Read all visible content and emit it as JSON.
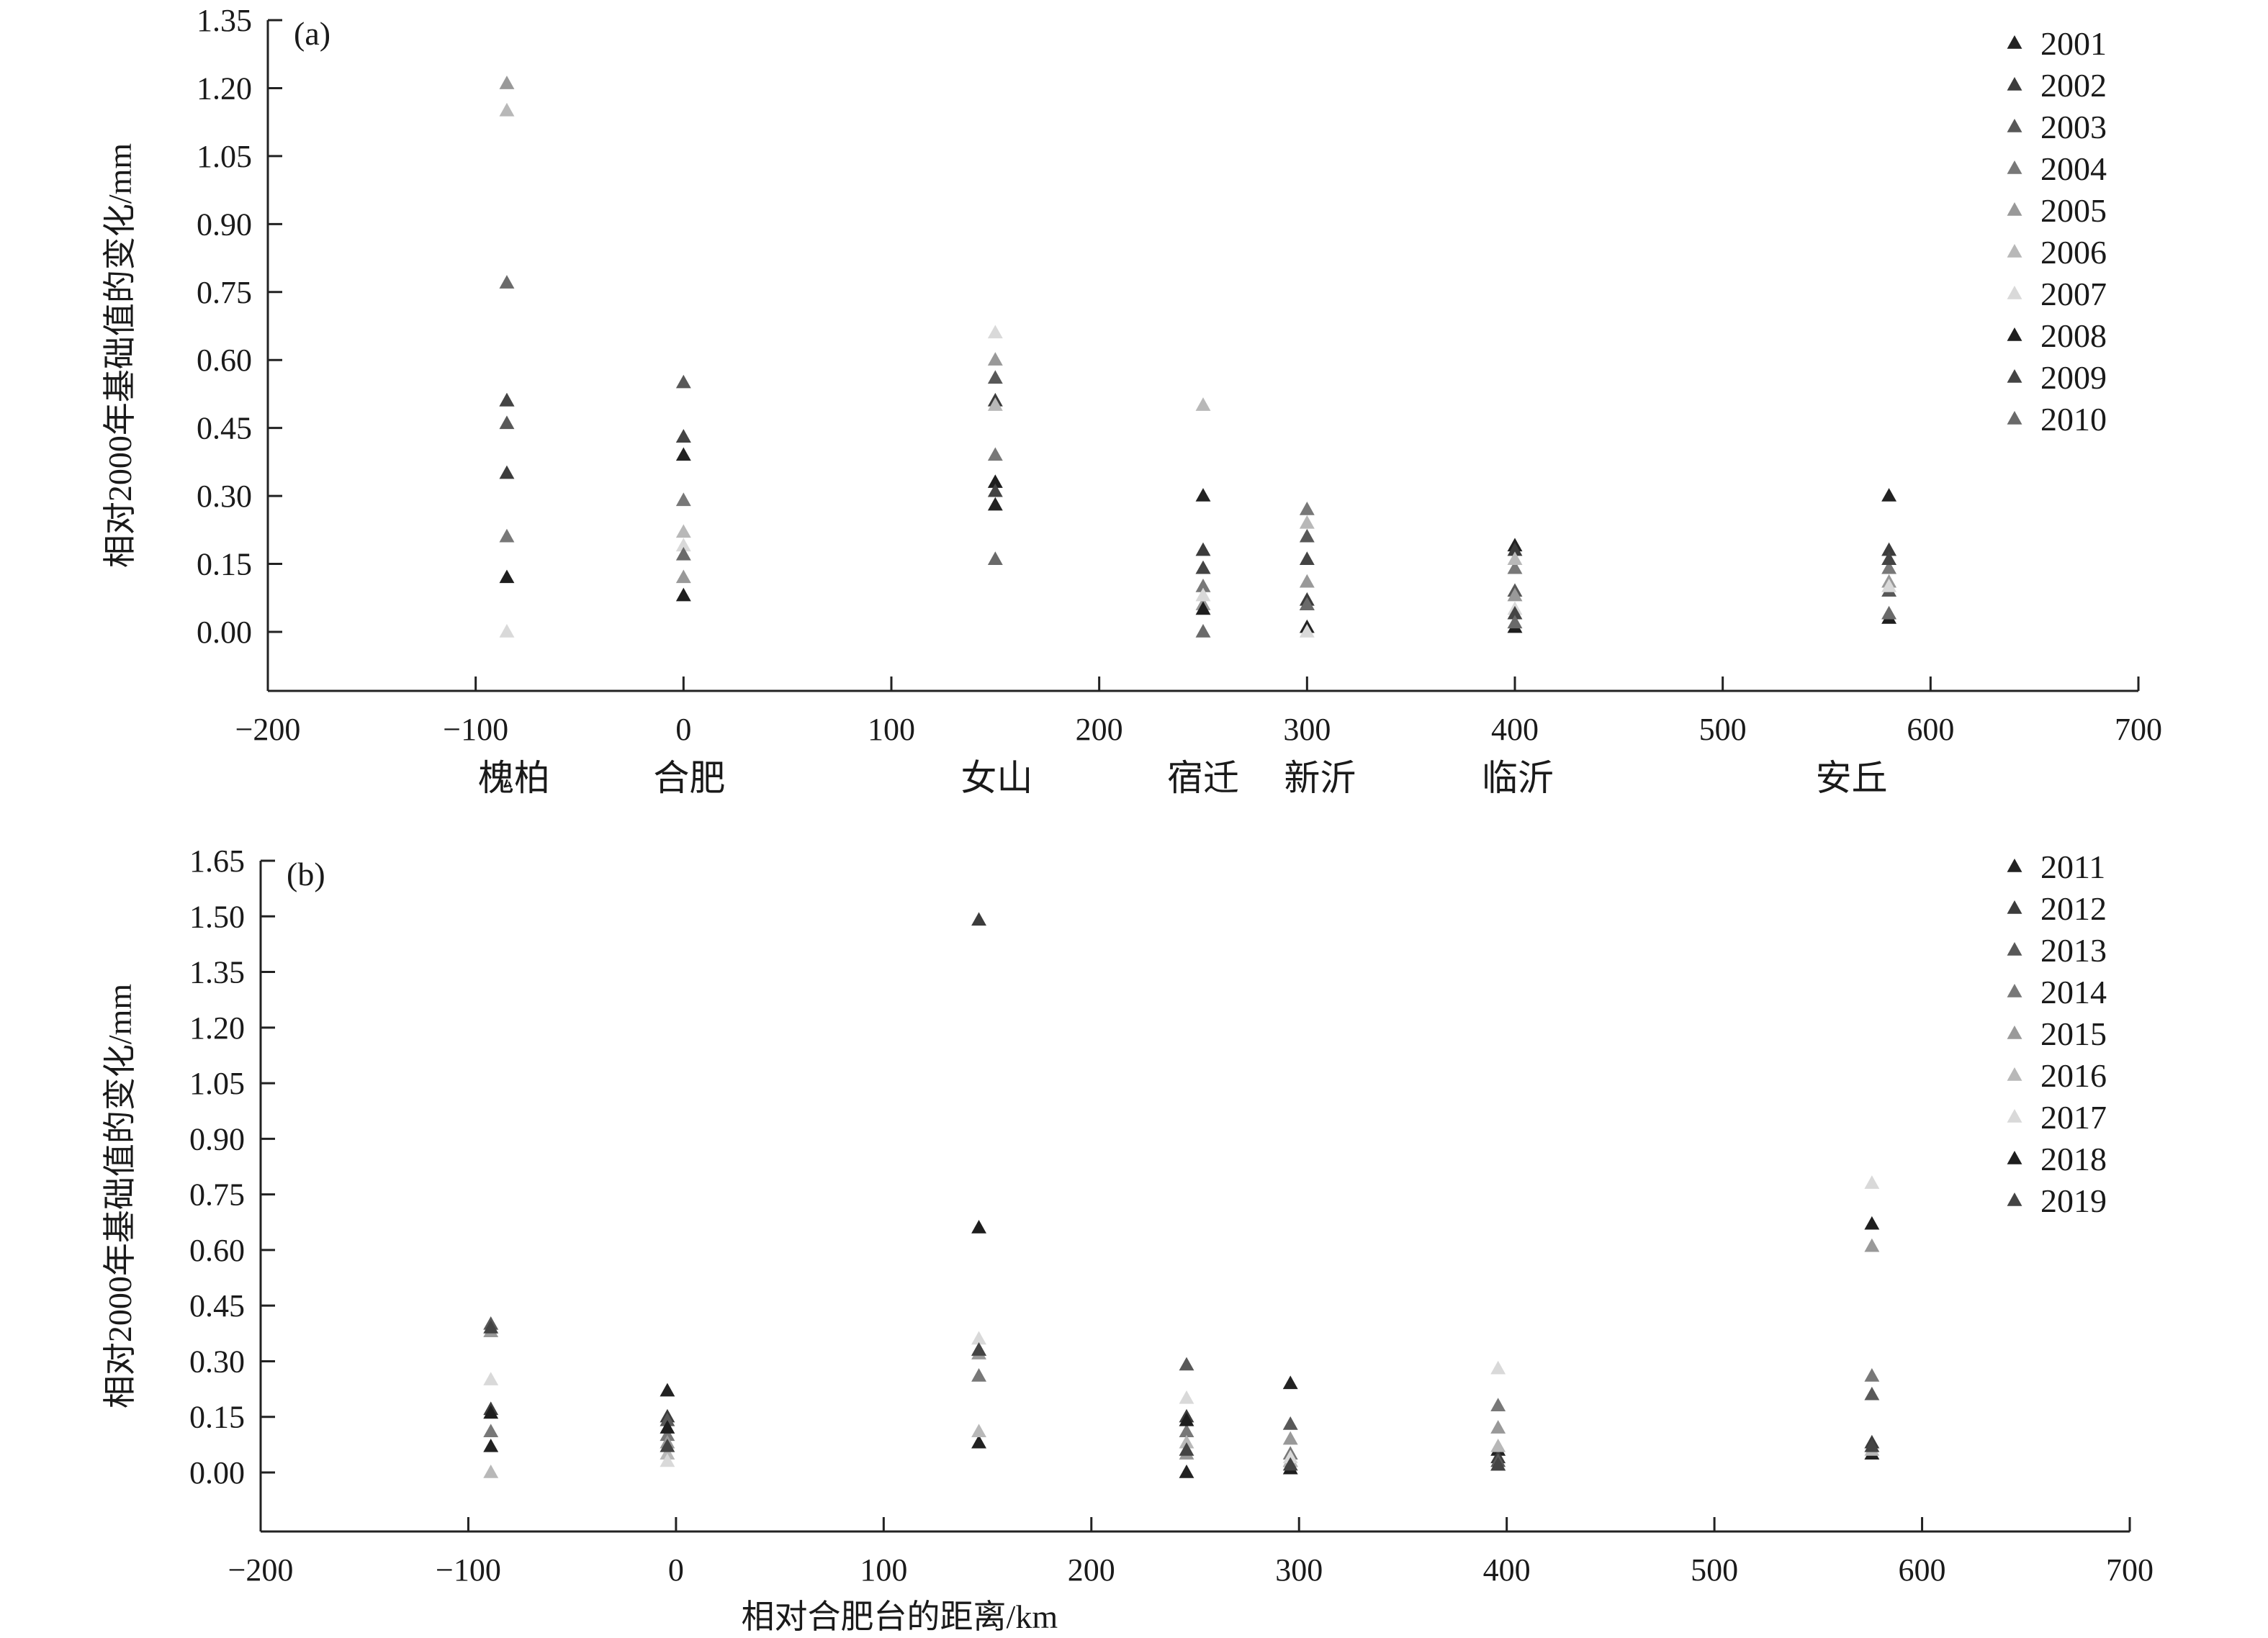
{
  "chart_data": [
    {
      "type": "scatter",
      "panel_label": "(a)",
      "ylabel": "相对2000年基础值的变化/mm",
      "xlabel": "",
      "xlim": [
        -200,
        700
      ],
      "ylim": [
        0,
        1.35
      ],
      "x_ticks": [
        -200,
        -100,
        0,
        100,
        200,
        300,
        400,
        500,
        600,
        700
      ],
      "x_tick_labels": [
        "−200",
        "−100",
        "0",
        "100",
        "200",
        "300",
        "400",
        "500",
        "600",
        "700"
      ],
      "y_ticks": [
        0,
        0.15,
        0.3,
        0.45,
        0.6,
        0.75,
        0.9,
        1.05,
        1.2,
        1.35
      ],
      "y_tick_labels": [
        "0.00",
        "0.15",
        "0.30",
        "0.45",
        "0.60",
        "0.75",
        "0.90",
        "1.05",
        "1.20",
        "1.35"
      ],
      "stations": [
        {
          "name": "槐柏",
          "x": -85
        },
        {
          "name": "合肥",
          "x": 0
        },
        {
          "name": "女山",
          "x": 150
        },
        {
          "name": "宿迁",
          "x": 250
        },
        {
          "name": "新沂",
          "x": 300
        },
        {
          "name": "临沂",
          "x": 400
        },
        {
          "name": "安丘",
          "x": 580
        }
      ],
      "legend_position": "top-right",
      "grid": false,
      "series": [
        {
          "name": "2001",
          "color": "#222222",
          "points": [
            [
              -85,
              0.51
            ],
            [
              0,
              0.39
            ],
            [
              150,
              0.28
            ],
            [
              250,
              0.3
            ],
            [
              300,
              0.01
            ],
            [
              400,
              0.19
            ],
            [
              580,
              0.3
            ]
          ]
        },
        {
          "name": "2002",
          "color": "#3c3c3c",
          "points": [
            [
              -85,
              0.35
            ],
            [
              0,
              0.43
            ],
            [
              150,
              0.51
            ],
            [
              250,
              0.18
            ],
            [
              300,
              0.07
            ],
            [
              400,
              0.18
            ],
            [
              580,
              0.18
            ]
          ]
        },
        {
          "name": "2003",
          "color": "#585858",
          "points": [
            [
              -85,
              0.46
            ],
            [
              0,
              0.55
            ],
            [
              150,
              0.56
            ],
            [
              250,
              0.14
            ],
            [
              300,
              0.21
            ],
            [
              400,
              0.09
            ],
            [
              580,
              0.09
            ]
          ]
        },
        {
          "name": "2004",
          "color": "#787878",
          "points": [
            [
              -85,
              0.21
            ],
            [
              0,
              0.29
            ],
            [
              150,
              0.39
            ],
            [
              250,
              0.1
            ],
            [
              300,
              0.27
            ],
            [
              400,
              0.14
            ],
            [
              580,
              0.14
            ]
          ]
        },
        {
          "name": "2005",
          "color": "#999999",
          "points": [
            [
              -85,
              1.21
            ],
            [
              0,
              0.12
            ],
            [
              150,
              0.6
            ],
            [
              250,
              0.06
            ],
            [
              300,
              0.11
            ],
            [
              400,
              0.08
            ],
            [
              580,
              0.11
            ]
          ]
        },
        {
          "name": "2006",
          "color": "#b8b8b8",
          "points": [
            [
              -85,
              1.15
            ],
            [
              0,
              0.22
            ],
            [
              150,
              0.5
            ],
            [
              250,
              0.5
            ],
            [
              300,
              0.24
            ],
            [
              400,
              0.16
            ],
            [
              580,
              0.04
            ]
          ]
        },
        {
          "name": "2007",
          "color": "#d9d9d9",
          "points": [
            [
              -85,
              0.0
            ],
            [
              0,
              0.19
            ],
            [
              150,
              0.66
            ],
            [
              250,
              0.08
            ],
            [
              300,
              0.0
            ],
            [
              400,
              0.05
            ],
            [
              580,
              0.1
            ]
          ]
        },
        {
          "name": "2008",
          "color": "#1e1e1e",
          "points": [
            [
              -85,
              0.12
            ],
            [
              0,
              0.08
            ],
            [
              150,
              0.33
            ],
            [
              250,
              0.05
            ],
            [
              300,
              0.06
            ],
            [
              400,
              0.01
            ],
            [
              580,
              0.03
            ]
          ]
        },
        {
          "name": "2009",
          "color": "#444444",
          "points": [
            [
              -85,
              0.51
            ],
            [
              0,
              0.43
            ],
            [
              150,
              0.31
            ],
            [
              250,
              0.14
            ],
            [
              300,
              0.16
            ],
            [
              400,
              0.04
            ],
            [
              580,
              0.16
            ]
          ]
        },
        {
          "name": "2010",
          "color": "#6a6a6a",
          "points": [
            [
              -85,
              0.77
            ],
            [
              0,
              0.17
            ],
            [
              150,
              0.16
            ],
            [
              250,
              0.0
            ],
            [
              300,
              0.06
            ],
            [
              400,
              0.02
            ],
            [
              580,
              0.04
            ]
          ]
        }
      ]
    },
    {
      "type": "scatter",
      "panel_label": "(b)",
      "ylabel": "相对2000年基础值的变化/mm",
      "xlabel": "相对合肥台的距离/km",
      "xlim": [
        -200,
        700
      ],
      "ylim": [
        0,
        1.65
      ],
      "x_ticks": [
        -200,
        -100,
        0,
        100,
        200,
        300,
        400,
        500,
        600,
        700
      ],
      "x_tick_labels": [
        "−200",
        "−100",
        "0",
        "100",
        "200",
        "300",
        "400",
        "500",
        "600",
        "700"
      ],
      "y_ticks": [
        0,
        0.15,
        0.3,
        0.45,
        0.6,
        0.75,
        0.9,
        1.05,
        1.2,
        1.35,
        1.5,
        1.65
      ],
      "y_tick_labels": [
        "0.00",
        "0.15",
        "0.30",
        "0.45",
        "0.60",
        "0.75",
        "0.90",
        "1.05",
        "1.20",
        "1.35",
        "1.50",
        "1.65"
      ],
      "legend_position": "top-right",
      "grid": false,
      "series": [
        {
          "name": "2011",
          "color": "#222222",
          "points": [
            [
              -85,
              0.07
            ],
            [
              0,
              0.22
            ],
            [
              150,
              0.08
            ],
            [
              250,
              0.0
            ],
            [
              300,
              0.24
            ],
            [
              400,
              0.06
            ],
            [
              580,
              0.05
            ]
          ]
        },
        {
          "name": "2012",
          "color": "#3c3c3c",
          "points": [
            [
              -85,
              0.17
            ],
            [
              0,
              0.15
            ],
            [
              150,
              1.49
            ],
            [
              250,
              0.15
            ],
            [
              300,
              0.03
            ],
            [
              400,
              0.04
            ],
            [
              580,
              0.08
            ]
          ]
        },
        {
          "name": "2013",
          "color": "#585858",
          "points": [
            [
              -85,
              0.4
            ],
            [
              0,
              0.14
            ],
            [
              150,
              0.33
            ],
            [
              250,
              0.29
            ],
            [
              300,
              0.13
            ],
            [
              400,
              0.03
            ],
            [
              580,
              0.21
            ]
          ]
        },
        {
          "name": "2014",
          "color": "#787878",
          "points": [
            [
              -85,
              0.11
            ],
            [
              0,
              0.1
            ],
            [
              150,
              0.26
            ],
            [
              250,
              0.11
            ],
            [
              300,
              0.05
            ],
            [
              400,
              0.18
            ],
            [
              580,
              0.26
            ]
          ]
        },
        {
          "name": "2015",
          "color": "#999999",
          "points": [
            [
              -85,
              0.38
            ],
            [
              0,
              0.08
            ],
            [
              150,
              0.32
            ],
            [
              250,
              0.05
            ],
            [
              300,
              0.09
            ],
            [
              400,
              0.12
            ],
            [
              580,
              0.61
            ]
          ]
        },
        {
          "name": "2016",
          "color": "#b8b8b8",
          "points": [
            [
              -85,
              0.0
            ],
            [
              0,
              0.05
            ],
            [
              150,
              0.11
            ],
            [
              250,
              0.08
            ],
            [
              300,
              0.03
            ],
            [
              400,
              0.07
            ],
            [
              580,
              0.06
            ]
          ]
        },
        {
          "name": "2017",
          "color": "#d9d9d9",
          "points": [
            [
              -85,
              0.25
            ],
            [
              0,
              0.03
            ],
            [
              150,
              0.36
            ],
            [
              250,
              0.2
            ],
            [
              300,
              0.04
            ],
            [
              400,
              0.28
            ],
            [
              580,
              0.78
            ]
          ]
        },
        {
          "name": "2018",
          "color": "#1e1e1e",
          "points": [
            [
              -85,
              0.16
            ],
            [
              0,
              0.12
            ],
            [
              150,
              0.66
            ],
            [
              250,
              0.14
            ],
            [
              300,
              0.01
            ],
            [
              400,
              0.02
            ],
            [
              580,
              0.67
            ]
          ]
        },
        {
          "name": "2019",
          "color": "#444444",
          "points": [
            [
              -85,
              0.39
            ],
            [
              0,
              0.07
            ],
            [
              150,
              0.33
            ],
            [
              250,
              0.06
            ],
            [
              300,
              0.02
            ],
            [
              400,
              0.02
            ],
            [
              580,
              0.07
            ]
          ]
        }
      ]
    }
  ]
}
